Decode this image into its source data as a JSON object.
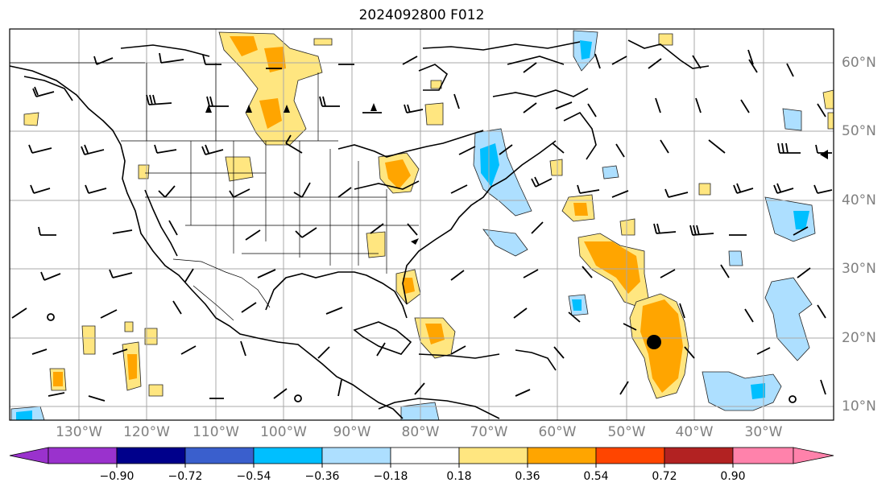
{
  "title": "2024092800 F012",
  "lon_labels": [
    "130°W",
    "120°W",
    "110°W",
    "100°W",
    "90°W",
    "80°W",
    "70°W",
    "60°W",
    "50°W",
    "40°W",
    "30°W"
  ],
  "lat_labels": [
    "60°N",
    "50°N",
    "40°N",
    "30°N",
    "20°N",
    "10°N"
  ],
  "colorbar": {
    "tick_labels": [
      "−0.90",
      "−0.72",
      "−0.54",
      "−0.36",
      "−0.18",
      "0.18",
      "0.36",
      "0.54",
      "0.72",
      "0.90"
    ],
    "colors": [
      "#9a32cd",
      "#00008b",
      "#3a5fcd",
      "#00bfff",
      "#addfff",
      "#ffffff",
      "#ffe680",
      "#ffa500",
      "#ff4500",
      "#b22222",
      "#ff82ab"
    ]
  },
  "features": {
    "storm_marker": "black filled circle",
    "open_markers": "calm wind circles"
  }
}
